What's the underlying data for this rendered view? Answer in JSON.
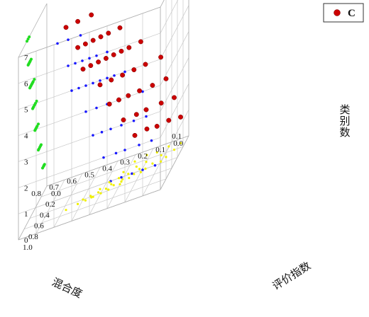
{
  "chart_data": {
    "type": "scatter",
    "title": "",
    "xlabel": "混合度",
    "ylabel": "评价指数",
    "zlabel": "类别数",
    "xlim": [
      0.0,
      0.8
    ],
    "ylim": [
      0.0,
      1.0
    ],
    "zlim": [
      0,
      7
    ],
    "x_ticks": [
      "0.0",
      "0.1",
      "0.2",
      "0.3",
      "0.4",
      "0.5",
      "0.6",
      "0.7",
      "0.8"
    ],
    "y_ticks": [
      "0.0",
      "0.2",
      "0.4",
      "0.6",
      "0.8",
      "1.0"
    ],
    "z_ticks": [
      "0",
      "1",
      "2",
      "3",
      "4",
      "5",
      "6",
      "7"
    ],
    "corner_tick": "0.1",
    "legend": {
      "position": "top-right",
      "entries": [
        {
          "label": "C",
          "color": "#cc0000"
        }
      ]
    },
    "grid": true,
    "projections": {
      "xz_wall": "#1a1aff",
      "yz_wall": "#22dd22",
      "xy_floor": "#f0f000"
    },
    "series": [
      {
        "name": "C",
        "color": "#cc0000",
        "points": [
          [
            0.03,
            0.1,
            1
          ],
          [
            0.1,
            0.08,
            1
          ],
          [
            0.16,
            0.12,
            1
          ],
          [
            0.22,
            0.1,
            1
          ],
          [
            0.28,
            0.15,
            1
          ],
          [
            0.05,
            0.2,
            2
          ],
          [
            0.12,
            0.22,
            2
          ],
          [
            0.2,
            0.25,
            2
          ],
          [
            0.25,
            0.28,
            2
          ],
          [
            0.32,
            0.3,
            2
          ],
          [
            0.08,
            0.3,
            3
          ],
          [
            0.15,
            0.34,
            3
          ],
          [
            0.22,
            0.36,
            3
          ],
          [
            0.28,
            0.38,
            3
          ],
          [
            0.33,
            0.4,
            3
          ],
          [
            0.38,
            0.42,
            3
          ],
          [
            0.1,
            0.36,
            4
          ],
          [
            0.18,
            0.4,
            4
          ],
          [
            0.24,
            0.43,
            4
          ],
          [
            0.3,
            0.46,
            4
          ],
          [
            0.36,
            0.48,
            4
          ],
          [
            0.42,
            0.5,
            4
          ],
          [
            0.2,
            0.44,
            5
          ],
          [
            0.26,
            0.48,
            5
          ],
          [
            0.3,
            0.5,
            5
          ],
          [
            0.34,
            0.52,
            5
          ],
          [
            0.38,
            0.54,
            5
          ],
          [
            0.42,
            0.56,
            5
          ],
          [
            0.46,
            0.58,
            5
          ],
          [
            0.5,
            0.6,
            5
          ],
          [
            0.3,
            0.55,
            6
          ],
          [
            0.36,
            0.58,
            6
          ],
          [
            0.4,
            0.6,
            6
          ],
          [
            0.44,
            0.62,
            6
          ],
          [
            0.48,
            0.64,
            6
          ],
          [
            0.52,
            0.66,
            6
          ],
          [
            0.45,
            0.62,
            7
          ],
          [
            0.52,
            0.66,
            7
          ],
          [
            0.58,
            0.7,
            7
          ]
        ]
      }
    ]
  }
}
